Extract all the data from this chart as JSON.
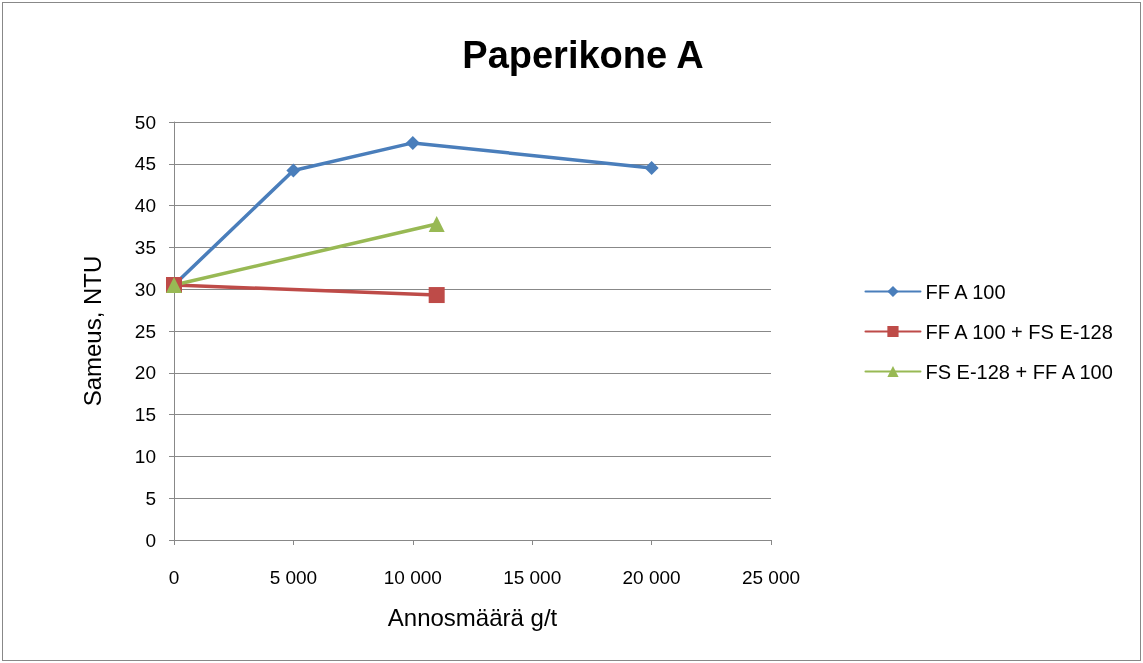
{
  "chart_data": {
    "type": "line",
    "title": "Paperikone A",
    "xlabel": "Annosmäärä g/t",
    "ylabel": "Sameus, NTU",
    "xlim": [
      0,
      25000
    ],
    "xticks": [
      {
        "value": 0,
        "label": "0"
      },
      {
        "value": 5000,
        "label": "5 000"
      },
      {
        "value": 10000,
        "label": "10 000"
      },
      {
        "value": 15000,
        "label": "15 000"
      },
      {
        "value": 20000,
        "label": "20 000"
      },
      {
        "value": 25000,
        "label": "25 000"
      }
    ],
    "ylim": [
      0,
      50
    ],
    "yticks": [
      0,
      5,
      10,
      15,
      20,
      25,
      30,
      35,
      40,
      45,
      50
    ],
    "grid": "y",
    "legend": "right",
    "series": [
      {
        "name": "FF A 100",
        "color": "#4a7ebb",
        "marker": "diamond",
        "x": [
          0,
          5000,
          10000,
          20000
        ],
        "values": [
          30.5,
          44.2,
          47.5,
          44.5
        ]
      },
      {
        "name": "FF A 100 + FS E-128",
        "color": "#be4b48",
        "marker": "square",
        "x": [
          0,
          11000
        ],
        "values": [
          30.5,
          29.3
        ]
      },
      {
        "name": "FS E-128 + FF A 100",
        "color": "#98b954",
        "marker": "triangle",
        "x": [
          0,
          11000
        ],
        "values": [
          30.5,
          37.8
        ]
      }
    ]
  }
}
